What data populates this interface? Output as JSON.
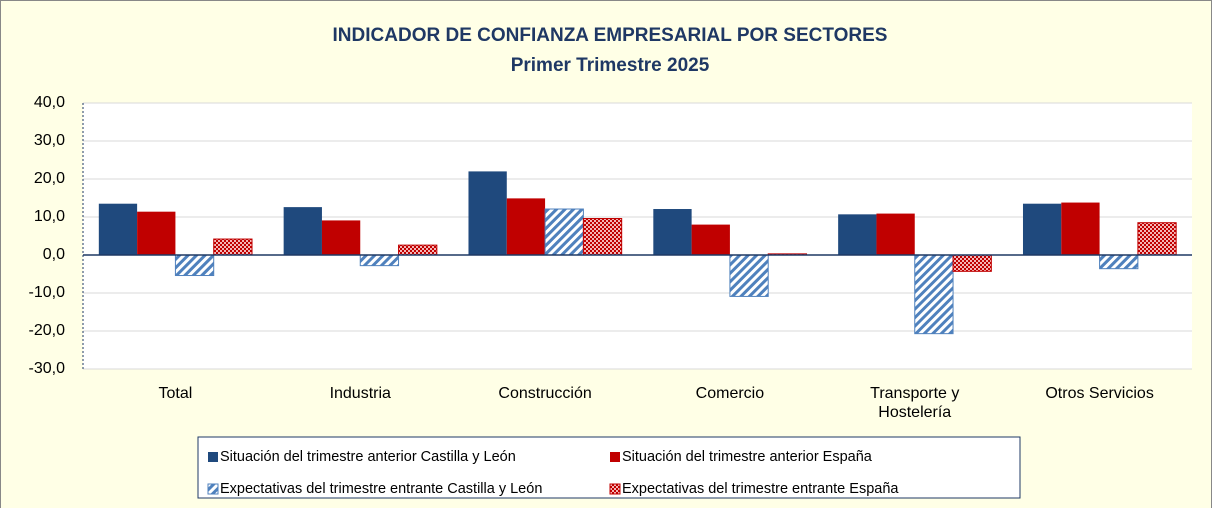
{
  "chart_data": {
    "type": "bar",
    "title": "INDICADOR DE CONFIANZA EMPRESARIAL POR SECTORES",
    "subtitle": "Primer Trimestre 2025",
    "categories": [
      "Total",
      "Industria",
      "Construcción",
      "Comercio",
      "Transporte y Hostelería",
      "Otros Servicios"
    ],
    "series": [
      {
        "name": "Situación del trimestre anterior Castilla y León",
        "color": "#1f497d",
        "pattern": "solid",
        "values": [
          13.5,
          12.6,
          22.0,
          12.1,
          10.7,
          13.5
        ]
      },
      {
        "name": "Situación del trimestre anterior España",
        "color": "#c00000",
        "pattern": "solid",
        "values": [
          11.4,
          9.1,
          14.9,
          8.0,
          10.9,
          13.8
        ]
      },
      {
        "name": "Expectativas del trimestre entrante Castilla y León",
        "color": "#4f81bd",
        "pattern": "hatch",
        "values": [
          -5.4,
          -2.8,
          12.1,
          -10.9,
          -20.7,
          -3.6
        ]
      },
      {
        "name": "Expectativas del trimestre entrante España",
        "color": "#c00000",
        "pattern": "checker",
        "values": [
          4.2,
          2.6,
          9.6,
          0.3,
          -4.3,
          8.5
        ]
      }
    ],
    "ylim": [
      -30,
      40
    ],
    "yticks": [
      {
        "value": -30,
        "label": "-30,0"
      },
      {
        "value": -20,
        "label": "-20,0"
      },
      {
        "value": -10,
        "label": "-10,0"
      },
      {
        "value": 0,
        "label": "0,0"
      },
      {
        "value": 10,
        "label": "10,0"
      },
      {
        "value": 20,
        "label": "20,0"
      },
      {
        "value": 30,
        "label": "30,0"
      },
      {
        "value": 40,
        "label": "40,0"
      }
    ],
    "grid": true,
    "legend": "bottom"
  }
}
